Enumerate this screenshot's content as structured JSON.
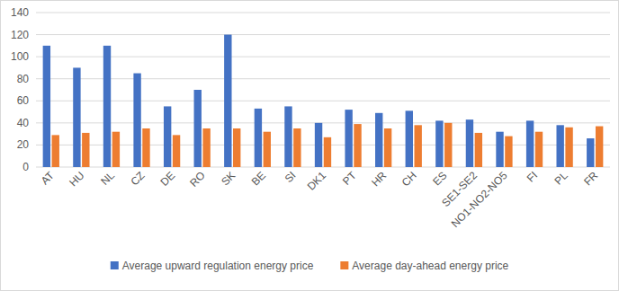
{
  "chart_data": {
    "type": "bar",
    "categories": [
      "AT",
      "HU",
      "NL",
      "CZ",
      "DE",
      "RO",
      "SK",
      "BE",
      "SI",
      "DK1",
      "PT",
      "HR",
      "CH",
      "ES",
      "SE1-SE2",
      "NO1-NO2-NO5",
      "FI",
      "PL",
      "FR"
    ],
    "series": [
      {
        "name": "Average upward regulation energy price",
        "color": "#4472c4",
        "values": [
          110,
          90,
          110,
          85,
          55,
          70,
          120,
          53,
          55,
          40,
          52,
          49,
          51,
          42,
          43,
          32,
          42,
          38,
          26
        ]
      },
      {
        "name": "Average day-ahead energy price",
        "color": "#ed7d31",
        "values": [
          29,
          31,
          32,
          35,
          29,
          35,
          35,
          32,
          35,
          27,
          39,
          35,
          38,
          40,
          31,
          28,
          32,
          36,
          37
        ]
      }
    ],
    "ylim": [
      0,
      140
    ],
    "yticks": [
      0,
      20,
      40,
      60,
      80,
      100,
      120,
      140
    ],
    "grid": true,
    "legend": "bottom"
  }
}
